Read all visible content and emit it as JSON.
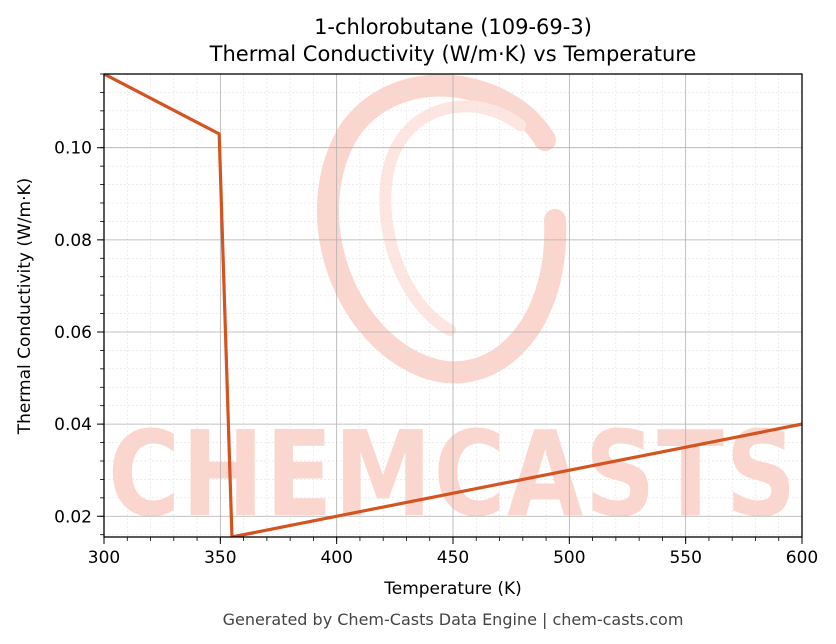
{
  "chart_data": {
    "type": "line",
    "title": "1-chlorobutane (109-69-3)",
    "subtitle": "Thermal Conductivity (W/m·K) vs Temperature",
    "xlabel": "Temperature (K)",
    "ylabel": "Thermal Conductivity (W/m·K)",
    "xlim": [
      300,
      600
    ],
    "ylim": [
      0.0155,
      0.116
    ],
    "xticks": [
      300,
      350,
      400,
      450,
      500,
      550,
      600
    ],
    "yticks": [
      0.02,
      0.04,
      0.06,
      0.08,
      0.1
    ],
    "ytick_labels": [
      "0.02",
      "0.04",
      "0.06",
      "0.08",
      "0.10"
    ],
    "grid": true,
    "series": [
      {
        "color": "#d4531f",
        "x": [
          300,
          349.5,
          355,
          600
        ],
        "y": [
          0.116,
          0.103,
          0.0155,
          0.04
        ]
      }
    ]
  },
  "watermark": {
    "text": "CHEMCASTS",
    "color": "#fbd6cf"
  },
  "footer": "Generated by Chem-Casts Data Engine | chem-casts.com"
}
